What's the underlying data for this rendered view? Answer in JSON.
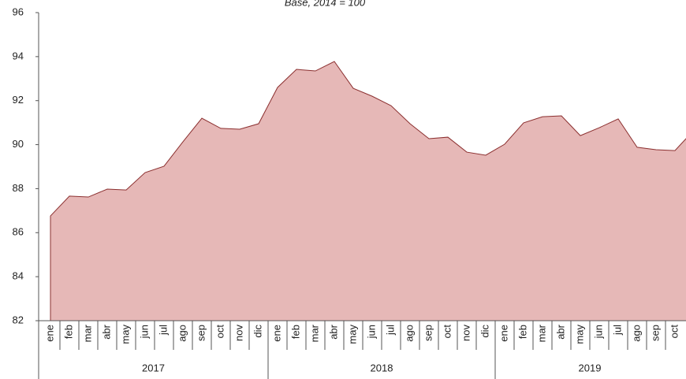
{
  "chart_data": {
    "type": "area",
    "subtitle": "Base, 2014 = 100",
    "categories": [
      "ene",
      "feb",
      "mar",
      "abr",
      "may",
      "jun",
      "jul",
      "ago",
      "sep",
      "oct",
      "nov",
      "dic",
      "ene",
      "feb",
      "mar",
      "abr",
      "may",
      "jun",
      "jul",
      "ago",
      "sep",
      "oct",
      "nov",
      "dic",
      "ene",
      "feb",
      "mar",
      "abr",
      "may",
      "jun",
      "jul",
      "ago",
      "sep",
      "oct",
      null
    ],
    "year_groups": [
      "2017",
      "2018",
      "2019"
    ],
    "values": [
      86.76,
      87.66,
      87.62,
      87.98,
      87.94,
      88.73,
      89.02,
      90.13,
      91.2,
      90.74,
      90.7,
      90.95,
      92.6,
      93.42,
      93.35,
      93.78,
      92.56,
      92.2,
      91.77,
      90.95,
      90.27,
      90.34,
      89.66,
      89.52,
      90.02,
      90.99,
      91.27,
      91.31,
      90.41,
      90.77,
      91.17,
      89.88,
      89.77,
      89.73,
      90.66
    ],
    "fill_color": "#e6b8b7",
    "line_color": "#8b2f2f",
    "ylim": [
      82,
      96
    ],
    "yticks": [
      82,
      84,
      86,
      88,
      90,
      92,
      94,
      96
    ],
    "grid": false
  }
}
